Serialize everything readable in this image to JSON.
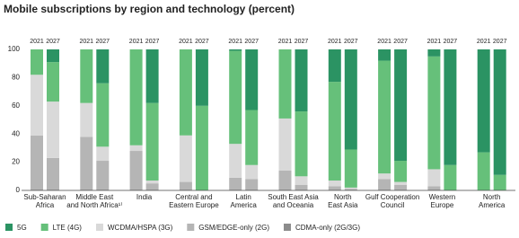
{
  "chart_data": {
    "type": "stacked-bar",
    "title": "Mobile subscriptions by region and technology (percent)",
    "years": [
      "2021",
      "2027"
    ],
    "categories": [
      [
        "Sub-Saharan",
        "Africa"
      ],
      [
        "Middle East",
        "and North Africa¹⁾"
      ],
      [
        "India"
      ],
      [
        "Central and",
        "Eastern Europe"
      ],
      [
        "Latin",
        "America"
      ],
      [
        "South East Asia",
        "and Oceania"
      ],
      [
        "North",
        "East Asia"
      ],
      [
        "Gulf Cooperation",
        "Council"
      ],
      [
        "Western",
        "Europe"
      ],
      [
        "North",
        "America"
      ]
    ],
    "series": [
      {
        "name": "CDMA-only (2G/3G)",
        "color": "#8c8c8c",
        "values": [
          [
            0,
            0
          ],
          [
            0,
            0
          ],
          [
            0,
            0
          ],
          [
            0,
            0
          ],
          [
            0,
            0
          ],
          [
            0,
            0
          ],
          [
            0,
            0
          ],
          [
            0,
            0
          ],
          [
            0,
            0
          ],
          [
            0,
            0
          ]
        ]
      },
      {
        "name": "GSM/EDGE-only (2G)",
        "color": "#b5b5b5",
        "values": [
          [
            39,
            23
          ],
          [
            38,
            21
          ],
          [
            28,
            5
          ],
          [
            6,
            0
          ],
          [
            9,
            8
          ],
          [
            14,
            4
          ],
          [
            3,
            1
          ],
          [
            8,
            4
          ],
          [
            3,
            0
          ],
          [
            0,
            0
          ]
        ]
      },
      {
        "name": "WCDMA/HSPA (3G)",
        "color": "#d9d9d9",
        "values": [
          [
            43,
            40
          ],
          [
            24,
            10
          ],
          [
            4,
            2
          ],
          [
            33,
            0
          ],
          [
            24,
            10
          ],
          [
            37,
            6
          ],
          [
            4,
            1
          ],
          [
            4,
            2
          ],
          [
            12,
            0
          ],
          [
            0,
            0
          ]
        ]
      },
      {
        "name": "LTE (4G)",
        "color": "#66c07a",
        "values": [
          [
            18,
            28
          ],
          [
            38,
            45
          ],
          [
            68,
            55
          ],
          [
            61,
            60
          ],
          [
            66,
            39
          ],
          [
            49,
            46
          ],
          [
            70,
            27
          ],
          [
            80,
            15
          ],
          [
            80,
            18
          ],
          [
            27,
            11
          ]
        ]
      },
      {
        "name": "5G",
        "color": "#2b9363",
        "values": [
          [
            0,
            9
          ],
          [
            0,
            24
          ],
          [
            0,
            38
          ],
          [
            0,
            40
          ],
          [
            1,
            43
          ],
          [
            0,
            44
          ],
          [
            23,
            71
          ],
          [
            8,
            79
          ],
          [
            5,
            82
          ],
          [
            73,
            89
          ]
        ]
      }
    ],
    "ylim": [
      0,
      100
    ],
    "yticks": [
      0,
      20,
      40,
      60,
      80,
      100
    ],
    "grid": false
  }
}
